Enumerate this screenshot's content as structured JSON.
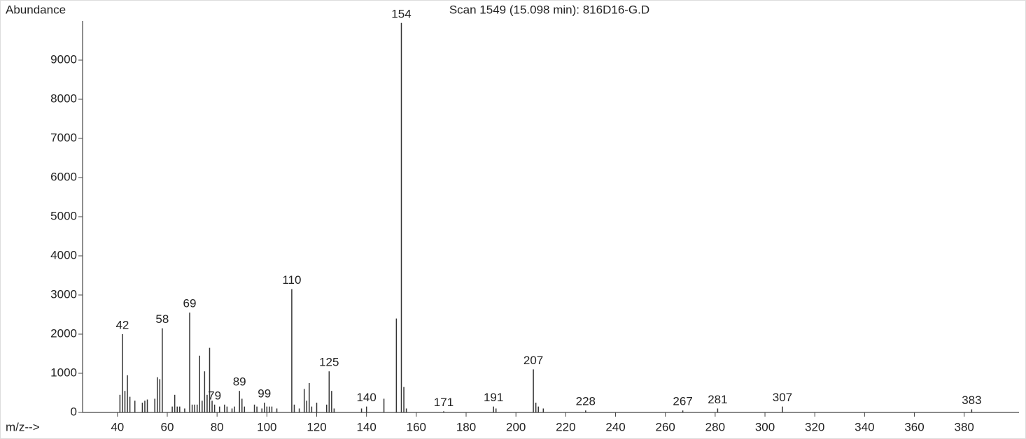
{
  "chart_data": {
    "type": "stick",
    "title": "Scan 1549 (15.098 min): 816D16-G.D",
    "y_label": "Abundance",
    "x_label": "m/z-->",
    "color": "#333333",
    "x": [
      41,
      42,
      43,
      44,
      45,
      47,
      50,
      51,
      52,
      55,
      56,
      57,
      58,
      62,
      63,
      64,
      65,
      67,
      69,
      70,
      71,
      72,
      73,
      74,
      75,
      76,
      77,
      78,
      79,
      81,
      83,
      84,
      86,
      87,
      89,
      90,
      91,
      95,
      96,
      98,
      99,
      100,
      101,
      102,
      104,
      110,
      111,
      113,
      115,
      116,
      117,
      118,
      120,
      124,
      125,
      126,
      127,
      138,
      140,
      147,
      152,
      154,
      155,
      156,
      171,
      191,
      192,
      207,
      208,
      209,
      211,
      228,
      267,
      281,
      307,
      383
    ],
    "values": [
      450,
      2000,
      550,
      950,
      400,
      300,
      250,
      300,
      330,
      350,
      900,
      850,
      2150,
      150,
      450,
      150,
      150,
      100,
      2550,
      200,
      200,
      200,
      1450,
      300,
      1050,
      450,
      1650,
      300,
      200,
      150,
      200,
      150,
      100,
      150,
      550,
      350,
      150,
      200,
      150,
      100,
      250,
      150,
      150,
      150,
      100,
      3150,
      200,
      100,
      600,
      300,
      750,
      150,
      250,
      200,
      1050,
      550,
      100,
      100,
      150,
      350,
      2400,
      9950,
      650,
      100,
      30,
      150,
      100,
      1100,
      250,
      150,
      100,
      50,
      50,
      100,
      150,
      80
    ],
    "peak_labels": [
      null,
      "42",
      null,
      null,
      null,
      null,
      null,
      null,
      null,
      null,
      null,
      null,
      "58",
      null,
      null,
      null,
      null,
      null,
      "69",
      null,
      null,
      null,
      null,
      null,
      null,
      null,
      null,
      null,
      "79",
      null,
      null,
      null,
      null,
      null,
      "89",
      null,
      null,
      null,
      null,
      null,
      "99",
      null,
      null,
      null,
      null,
      "110",
      null,
      null,
      null,
      null,
      null,
      null,
      null,
      null,
      "125",
      null,
      null,
      null,
      "140",
      null,
      null,
      "154",
      null,
      null,
      "171",
      "191",
      null,
      "207",
      null,
      null,
      null,
      "228",
      "267",
      "281",
      "307",
      "383"
    ],
    "xlim": [
      26,
      402
    ],
    "ylim": [
      0,
      10000
    ],
    "xticks": [
      40,
      60,
      80,
      100,
      120,
      140,
      160,
      180,
      200,
      220,
      240,
      260,
      280,
      300,
      320,
      340,
      360,
      380
    ],
    "yticks": [
      0,
      1000,
      2000,
      3000,
      4000,
      5000,
      6000,
      7000,
      8000,
      9000
    ]
  }
}
